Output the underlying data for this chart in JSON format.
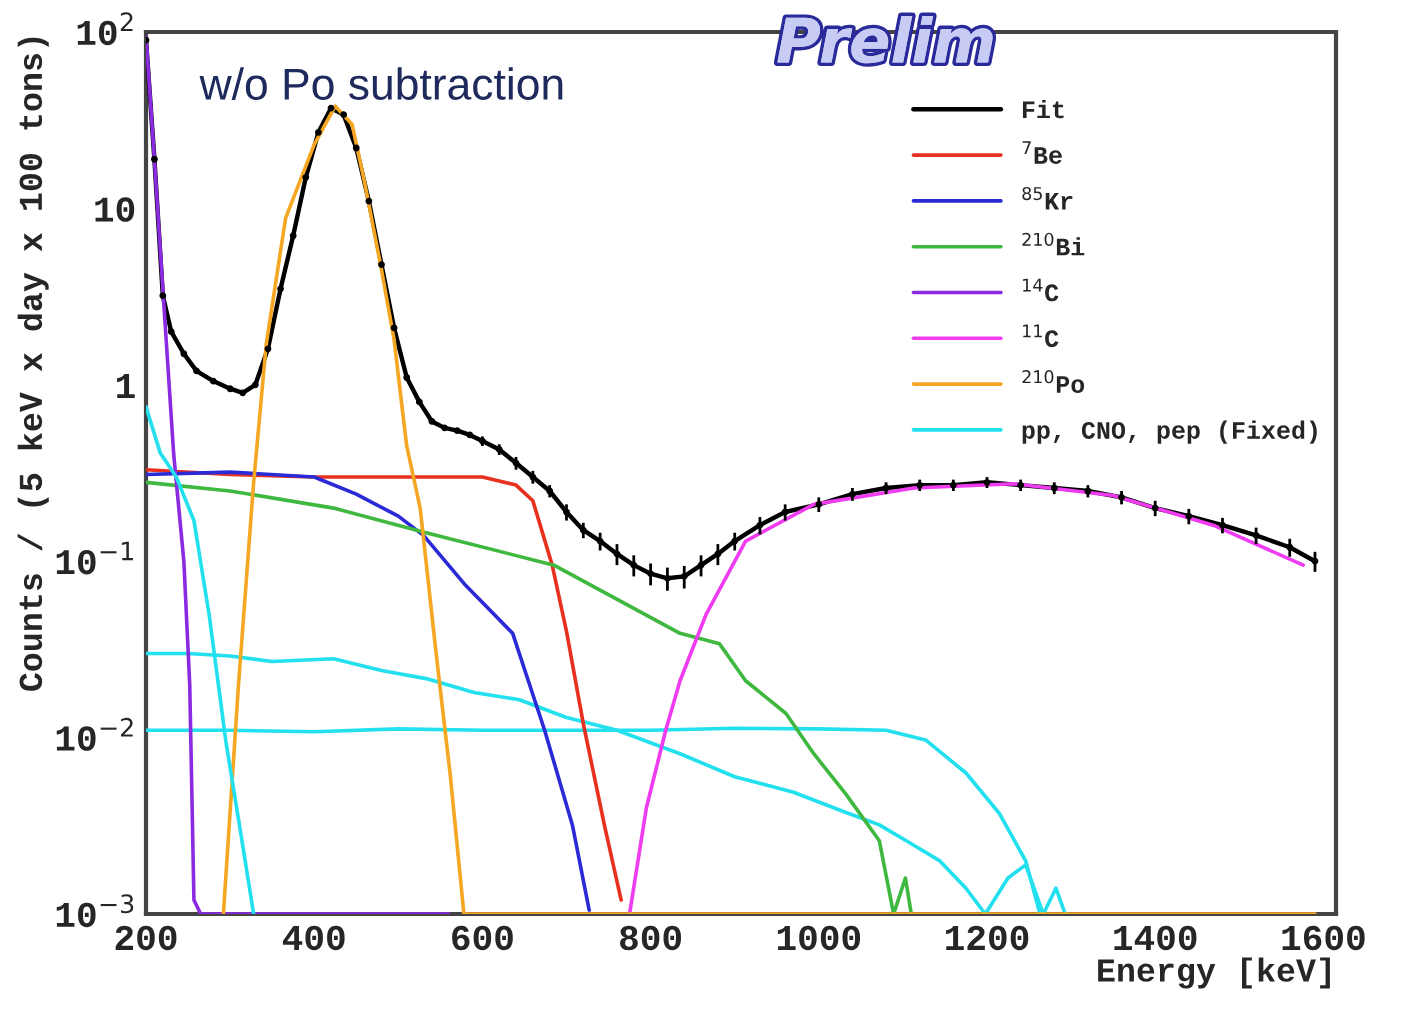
{
  "chart_data": {
    "type": "line",
    "xlabel": "Energy [keV]",
    "ylabel": "Counts / (5 keV x day x 100 tons)",
    "annotations": [
      "w/o Po subtraction",
      "Prelim"
    ],
    "log": "y",
    "grid": false,
    "legend": "top right",
    "marker": "none",
    "line_style": "solid",
    "xlim": [
      200,
      1615
    ],
    "xticks": [
      200,
      400,
      600,
      800,
      1000,
      1200,
      1400,
      1600
    ],
    "ylim": [
      0.001,
      100
    ],
    "yticks": [
      {
        "value": 0.001,
        "label": "10$^{−3}$"
      },
      {
        "value": 0.01,
        "label": "10$^{−2}$"
      },
      {
        "value": 0.1,
        "label": "10$^{−1}$"
      },
      1,
      10,
      {
        "value": 100,
        "label": "10$^{2}$"
      }
    ],
    "series": [
      {
        "type": "scatter",
        "color": "#000000",
        "x": [
          200,
          210,
          220,
          230,
          245,
          260,
          280,
          300,
          315,
          330,
          345,
          360,
          375,
          390,
          405,
          420,
          435,
          450,
          465,
          480,
          495,
          510,
          525,
          540,
          555,
          570,
          585,
          600,
          620,
          640,
          660,
          680,
          700,
          720,
          740,
          760,
          780,
          800,
          820,
          840,
          860,
          880,
          900,
          930,
          960,
          1000,
          1040,
          1080,
          1120,
          1160,
          1200,
          1240,
          1280,
          1320,
          1360,
          1400,
          1440,
          1480,
          1520,
          1560,
          1590
        ],
        "values": [
          90,
          19,
          3.2,
          2.0,
          1.5,
          1.2,
          1.05,
          0.95,
          0.9,
          1.0,
          1.6,
          3.5,
          7,
          15,
          27,
          37,
          34,
          22,
          11,
          4.8,
          2.1,
          1.1,
          0.8,
          0.62,
          0.57,
          0.55,
          0.52,
          0.48,
          0.43,
          0.36,
          0.3,
          0.25,
          0.19,
          0.15,
          0.13,
          0.11,
          0.095,
          0.085,
          0.08,
          0.082,
          0.095,
          0.11,
          0.13,
          0.16,
          0.19,
          0.21,
          0.24,
          0.26,
          0.27,
          0.27,
          0.28,
          0.27,
          0.26,
          0.25,
          0.23,
          0.2,
          0.18,
          0.16,
          0.14,
          0.12,
          0.1
        ],
        "errors": [
          null,
          null,
          null,
          null,
          null,
          null,
          null,
          null,
          null,
          null,
          null,
          null,
          null,
          null,
          null,
          null,
          null,
          null,
          null,
          null,
          null,
          null,
          null,
          null,
          null,
          null,
          null,
          0.03,
          0.03,
          0.03,
          0.025,
          0.02,
          0.02,
          0.015,
          0.015,
          0.015,
          0.013,
          0.012,
          0.012,
          0.012,
          0.013,
          0.015,
          0.015,
          0.018,
          0.02,
          0.02,
          0.02,
          0.02,
          0.02,
          0.02,
          0.02,
          0.02,
          0.02,
          0.02,
          0.02,
          0.02,
          0.018,
          0.016,
          0.015,
          0.014,
          0.013
        ]
      },
      {
        "name": "Fit",
        "color": "#000000",
        "x": [
          200,
          210,
          220,
          230,
          245,
          260,
          280,
          300,
          315,
          330,
          345,
          360,
          375,
          390,
          405,
          420,
          435,
          450,
          465,
          480,
          495,
          510,
          525,
          540,
          555,
          570,
          585,
          600,
          620,
          640,
          660,
          680,
          700,
          720,
          740,
          760,
          780,
          800,
          820,
          840,
          860,
          880,
          900,
          930,
          960,
          1000,
          1040,
          1080,
          1120,
          1160,
          1200,
          1240,
          1280,
          1320,
          1360,
          1400,
          1440,
          1480,
          1520,
          1560,
          1590
        ],
        "values": [
          90,
          19,
          3.2,
          2.0,
          1.5,
          1.2,
          1.05,
          0.95,
          0.9,
          1.0,
          1.6,
          3.5,
          7,
          15,
          27,
          37,
          34,
          22,
          11,
          4.8,
          2.1,
          1.1,
          0.8,
          0.62,
          0.57,
          0.55,
          0.52,
          0.48,
          0.43,
          0.36,
          0.3,
          0.25,
          0.19,
          0.15,
          0.13,
          0.11,
          0.095,
          0.085,
          0.08,
          0.082,
          0.095,
          0.11,
          0.13,
          0.16,
          0.19,
          0.21,
          0.24,
          0.26,
          0.27,
          0.27,
          0.28,
          0.27,
          0.26,
          0.25,
          0.23,
          0.2,
          0.18,
          0.16,
          0.14,
          0.12,
          0.1
        ]
      },
      {
        "name": "$^{7}$Be",
        "color": "#e8301e",
        "x": [
          200,
          300,
          400,
          500,
          600,
          640,
          660,
          683,
          700,
          720,
          745,
          765
        ],
        "values": [
          0.33,
          0.31,
          0.3,
          0.3,
          0.3,
          0.27,
          0.22,
          0.095,
          0.04,
          0.012,
          0.0032,
          0.0012
        ]
      },
      {
        "name": "$^{85}$Kr",
        "color": "#2a2ad6",
        "x": [
          200,
          300,
          400,
          450,
          500,
          530,
          580,
          636,
          674,
          707,
          727
        ],
        "values": [
          0.31,
          0.32,
          0.3,
          0.24,
          0.18,
          0.14,
          0.073,
          0.039,
          0.011,
          0.0032,
          0.00105
        ]
      },
      {
        "name": "$^{210}$Bi",
        "color": "#3fb83f",
        "x": [
          200,
          300,
          423,
          533,
          685,
          835,
          882,
          913,
          961,
          994,
          1032,
          1072,
          1089,
          1103,
          1110
        ],
        "values": [
          0.28,
          0.25,
          0.2,
          0.145,
          0.095,
          0.039,
          0.034,
          0.021,
          0.0137,
          0.0081,
          0.0048,
          0.0026,
          0.001,
          0.0016,
          0.001
        ]
      },
      {
        "name": "$^{14}$C",
        "color": "#8a2be2",
        "x": [
          200,
          210,
          220,
          233,
          245,
          252,
          257,
          265,
          560
        ],
        "values": [
          94,
          19,
          3.5,
          0.4,
          0.1,
          0.02,
          0.0012,
          0.001,
          0.001
        ]
      },
      {
        "name": "$^{11}$C",
        "color": "#f03cf0",
        "x": [
          775,
          795,
          818,
          835,
          866,
          913,
          994,
          1113,
          1232,
          1350,
          1469,
          1576
        ],
        "values": [
          0.001,
          0.004,
          0.011,
          0.021,
          0.05,
          0.13,
          0.21,
          0.26,
          0.275,
          0.236,
          0.16,
          0.095
        ]
      },
      {
        "name": "$^{210}$Po",
        "color": "#f5a623",
        "x": [
          292,
          310,
          328,
          343,
          366,
          400,
          425,
          445,
          460,
          480,
          495,
          510,
          526,
          545,
          562,
          578,
          1590
        ],
        "values": [
          0.001,
          0.02,
          0.28,
          1.7,
          8.8,
          23,
          38,
          30,
          14,
          4.5,
          1.8,
          0.45,
          0.2,
          0.03,
          0.006,
          0.001,
          0.001
        ]
      },
      {
        "name": "pp, CNO, pep (Fixed)",
        "color": "#22e0ee",
        "x": [
          200,
          217,
          236,
          257,
          275,
          295,
          312,
          328
        ],
        "values": [
          0.75,
          0.41,
          0.3,
          0.17,
          0.05,
          0.0095,
          0.003,
          0.001
        ]
      },
      {
        "color": "#22e0ee",
        "x": [
          200,
          250,
          300,
          350,
          423,
          480,
          533,
          590,
          644,
          700,
          760,
          835,
          900,
          970,
          1030,
          1072,
          1110,
          1144,
          1175,
          1198,
          1225,
          1246,
          1267,
          1282,
          1293
        ],
        "values": [
          0.03,
          0.03,
          0.029,
          0.027,
          0.028,
          0.024,
          0.0216,
          0.018,
          0.0164,
          0.013,
          0.011,
          0.0081,
          0.006,
          0.0049,
          0.0038,
          0.0032,
          0.0025,
          0.002,
          0.0014,
          0.001,
          0.0016,
          0.0019,
          0.001,
          0.0014,
          0.001
        ]
      },
      {
        "color": "#22e0ee",
        "x": [
          200,
          300,
          400,
          500,
          600,
          700,
          800,
          900,
          1000,
          1080,
          1127,
          1175,
          1215,
          1246,
          1263
        ],
        "values": [
          0.011,
          0.011,
          0.0108,
          0.0112,
          0.011,
          0.011,
          0.011,
          0.0113,
          0.0112,
          0.011,
          0.0097,
          0.0063,
          0.0037,
          0.002,
          0.001
        ]
      }
    ]
  }
}
